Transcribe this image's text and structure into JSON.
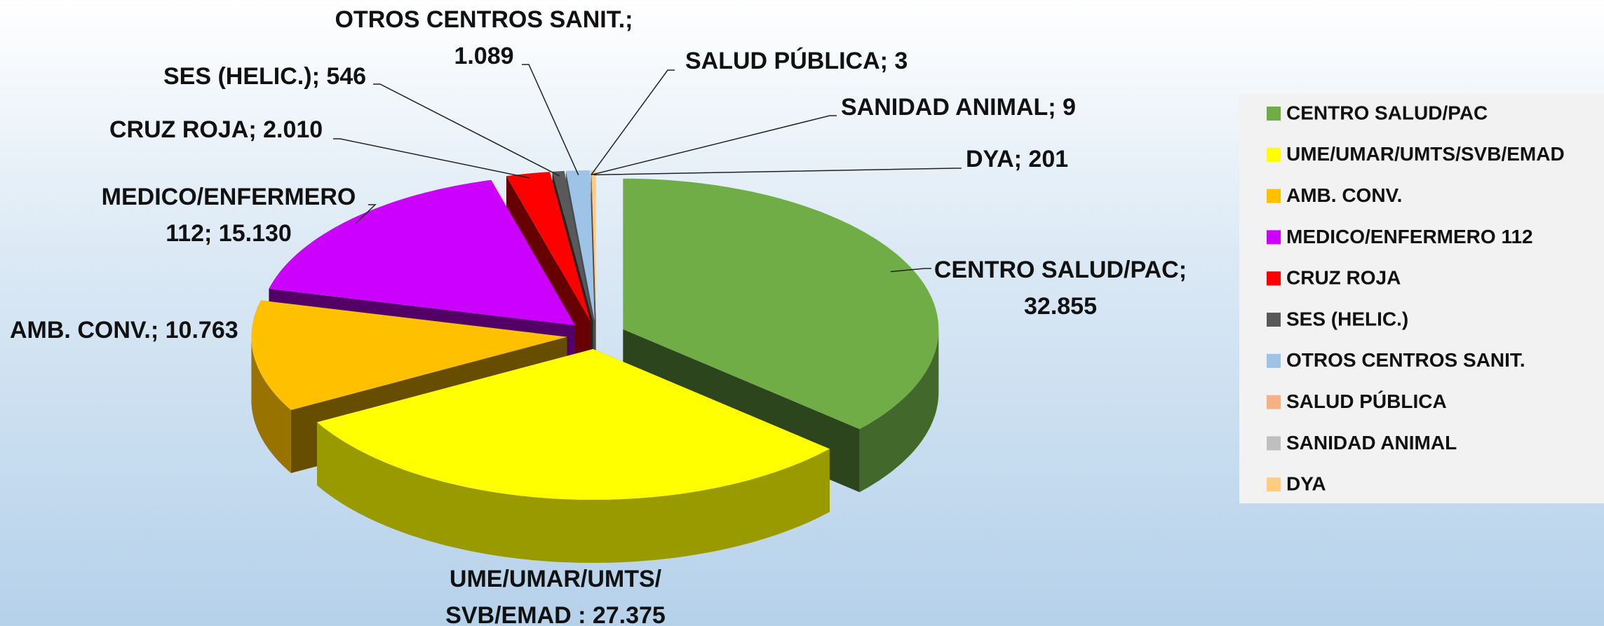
{
  "chart_data": {
    "type": "pie3d",
    "categories": [
      "CENTRO SALUD/PAC",
      "UME/UMAR/UMTS/SVB/EMAD",
      "AMB. CONV.",
      "MEDICO/ENFERMERO 112",
      "CRUZ ROJA",
      "SES (HELIC.)",
      "OTROS CENTROS SANIT.",
      "SALUD PÚBLICA",
      "SANIDAD ANIMAL",
      "DYA"
    ],
    "values": [
      32855,
      27375,
      10763,
      15130,
      2010,
      546,
      1089,
      3,
      9,
      201
    ],
    "value_labels": [
      "CENTRO SALUD/PAC; 32.855",
      "UME/UMAR/UMTS/SVB/EMAD : 27.375",
      "AMB. CONV.; 10.763",
      "MEDICO/ENFERMERO 112; 15.130",
      "CRUZ ROJA; 2.010",
      "SES (HELIC.); 546",
      "OTROS CENTROS SANIT.; 1.089",
      "SALUD PÚBLICA; 3",
      "SANIDAD ANIMAL; 9",
      "DYA; 201"
    ],
    "colors": [
      "#70ad47",
      "#ffff00",
      "#ffc000",
      "#cc00ff",
      "#ff0000",
      "#595959",
      "#9dc3e6",
      "#f4b183",
      "#bfbfbf",
      "#ffcc80"
    ],
    "legend": "right"
  }
}
